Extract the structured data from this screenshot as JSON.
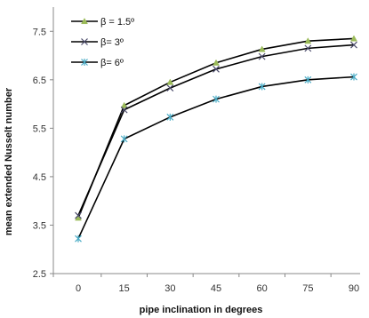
{
  "chart_data": {
    "type": "line",
    "title": "",
    "xlabel": "pipe inclination in degrees",
    "ylabel": "mean extended Nusselt number",
    "x": [
      0,
      15,
      30,
      45,
      60,
      75,
      90
    ],
    "xticks": [
      "0",
      "15",
      "30",
      "45",
      "60",
      "75",
      "90"
    ],
    "ylim": [
      2.5,
      8.0
    ],
    "yticks": [
      "2.5",
      "3.5",
      "4.5",
      "5.5",
      "6.5",
      "7.5"
    ],
    "grid": false,
    "legend_position": "top-left",
    "series": [
      {
        "name": "β = 1.5º",
        "values": [
          3.65,
          5.97,
          6.45,
          6.85,
          7.13,
          7.3,
          7.35
        ],
        "color": "#9bbb59",
        "marker": "triangle"
      },
      {
        "name": "β= 3º",
        "values": [
          3.7,
          5.88,
          6.33,
          6.72,
          6.98,
          7.15,
          7.22
        ],
        "color": "#4a4a6a",
        "marker": "x"
      },
      {
        "name": "β= 6º",
        "values": [
          3.22,
          5.28,
          5.73,
          6.1,
          6.36,
          6.5,
          6.56
        ],
        "color": "#4bacc6",
        "marker": "star"
      }
    ]
  }
}
